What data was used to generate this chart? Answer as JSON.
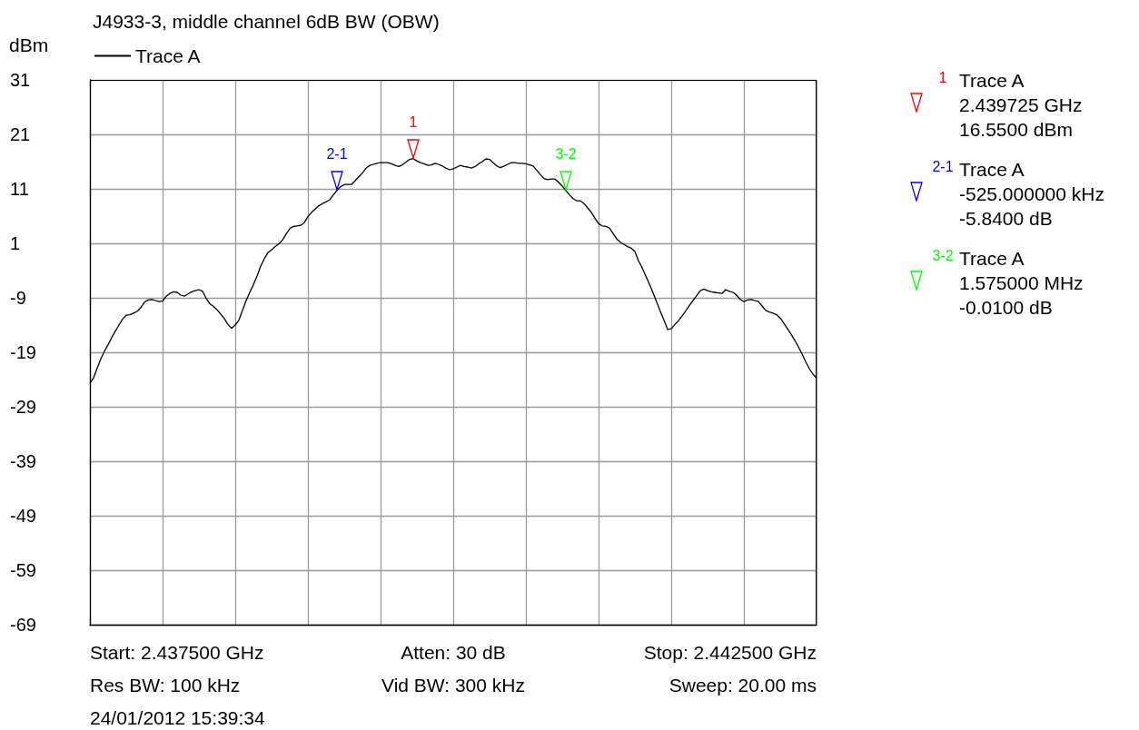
{
  "chart_data": {
    "type": "line",
    "title": "J4933-3, middle channel 6dB BW (OBW)",
    "ylabel": "dBm",
    "categories": [
      null,
      null,
      null,
      null,
      null,
      null,
      null,
      null,
      null,
      null,
      null,
      null,
      null,
      null,
      null,
      null,
      null,
      null,
      null,
      null,
      null,
      null,
      null,
      null,
      null,
      null,
      null,
      null,
      null,
      null,
      null,
      null,
      null,
      null,
      null,
      null,
      null,
      null,
      null,
      null,
      null,
      null,
      null,
      null,
      null,
      null,
      null,
      null,
      null,
      null,
      null,
      null,
      null,
      null,
      null,
      null,
      null,
      null,
      null,
      null,
      null,
      null,
      null,
      null,
      null,
      null,
      null,
      null,
      null,
      null,
      null,
      null,
      null,
      null,
      null,
      null,
      null,
      null,
      null,
      null,
      null,
      null,
      null,
      null,
      null,
      null,
      null,
      null,
      null,
      null,
      null,
      null,
      null,
      null,
      null,
      null,
      null,
      null,
      null,
      null,
      null,
      null,
      null,
      null,
      null,
      null,
      null,
      null,
      null,
      null,
      null,
      null,
      null,
      null,
      null,
      null,
      null,
      null,
      null,
      null,
      null,
      null,
      null,
      null,
      null,
      null,
      null,
      null,
      null,
      null,
      null,
      null,
      null,
      null,
      null,
      null,
      null,
      null,
      null,
      null,
      null,
      null,
      null,
      null,
      null,
      null,
      null,
      null,
      null,
      null,
      null,
      null,
      null,
      null,
      null,
      null,
      null,
      null,
      null,
      null,
      null,
      null,
      null,
      null,
      null,
      null,
      null,
      null,
      null,
      null,
      null,
      null,
      null,
      null,
      null,
      null,
      null,
      null,
      null,
      null,
      null,
      null,
      null,
      null,
      null,
      null,
      null,
      null,
      null,
      null,
      null,
      null,
      null,
      null,
      null,
      null,
      null,
      null,
      null,
      null,
      null
    ],
    "ylim": [
      -69,
      31
    ],
    "yticks": [
      -69,
      -59,
      -49,
      -39,
      -29,
      -19,
      -9,
      1,
      11,
      21,
      31
    ],
    "tick_labels": "y",
    "grid": true,
    "legend": "top left",
    "marker": "none",
    "line_style": "solid",
    "series": [
      {
        "name": "Trace A",
        "color": "#000000",
        "values": [
          -24.7,
          -23.7,
          -21.9,
          -20.2,
          -18.8,
          -17.6,
          -16.3,
          -15.1,
          -14.0,
          -12.9,
          -12.2,
          -12.1,
          -11.8,
          -11.5,
          -10.8,
          -9.8,
          -9.4,
          -9.3,
          -9.5,
          -9.7,
          -9.6,
          -8.7,
          -8.2,
          -7.9,
          -8.0,
          -8.5,
          -8.7,
          -8.3,
          -7.9,
          -7.7,
          -7.5,
          -7.8,
          -9.1,
          -10.1,
          -10.6,
          -11.2,
          -12.0,
          -12.8,
          -13.9,
          -14.6,
          -14.0,
          -13.1,
          -11.3,
          -9.5,
          -8.0,
          -6.6,
          -5.0,
          -3.2,
          -1.8,
          -0.7,
          -0.2,
          0.4,
          0.9,
          1.6,
          2.7,
          3.7,
          4.1,
          4.2,
          4.3,
          4.8,
          5.9,
          6.7,
          7.3,
          7.9,
          8.3,
          8.6,
          9.0,
          9.9,
          10.71,
          11.4,
          11.8,
          11.8,
          11.8,
          12.5,
          13.2,
          13.9,
          14.8,
          15.3,
          15.5,
          15.7,
          15.8,
          15.8,
          15.8,
          15.6,
          15.3,
          15.1,
          15.4,
          15.9,
          16.4,
          16.55,
          16.1,
          15.8,
          15.6,
          15.3,
          15.4,
          15.7,
          15.5,
          15.2,
          14.8,
          14.5,
          14.7,
          15.0,
          15.3,
          15.1,
          15.0,
          14.8,
          15.1,
          15.6,
          16.0,
          16.5,
          16.4,
          15.8,
          15.2,
          14.9,
          15.2,
          15.5,
          15.8,
          15.8,
          15.7,
          15.7,
          15.6,
          15.4,
          15.2,
          14.4,
          13.6,
          12.9,
          12.7,
          12.8,
          12.8,
          12.2,
          11.5,
          10.7,
          9.9,
          9.2,
          8.8,
          8.8,
          8.3,
          7.5,
          6.7,
          5.6,
          4.6,
          4.2,
          4.1,
          3.8,
          2.8,
          1.8,
          1.2,
          0.8,
          0.4,
          0.1,
          -0.5,
          -2.2,
          -3.5,
          -5.0,
          -6.5,
          -8.1,
          -9.8,
          -11.5,
          -13.1,
          -14.8,
          -14.7,
          -13.9,
          -13.2,
          -12.3,
          -11.4,
          -10.4,
          -9.5,
          -8.6,
          -7.7,
          -7.4,
          -7.7,
          -7.9,
          -8.0,
          -8.1,
          -8.2,
          -7.5,
          -7.8,
          -8.0,
          -8.5,
          -9.3,
          -9.7,
          -9.4,
          -9.3,
          -9.5,
          -9.7,
          -10.5,
          -11.3,
          -11.6,
          -11.8,
          -12.1,
          -12.7,
          -13.7,
          -14.7,
          -15.7,
          -16.8,
          -18.0,
          -19.3,
          -20.7,
          -22.0,
          -23.0,
          -23.7
        ]
      }
    ],
    "annotations": [
      {
        "text": "1",
        "y": 16.55
      },
      {
        "text": "2-1",
        "y": 10.71
      },
      {
        "text": "3-2",
        "y": 10.7
      },
      "1",
      "Trace A",
      "2.439725 GHz",
      "16.5500 dBm",
      "2-1",
      "Trace A",
      "-525.000000 kHz",
      "-5.8400 dB",
      "3-2",
      "Trace A",
      "1.575000 MHz",
      "-0.0100 dB",
      "Start: 2.437500 GHz",
      "Atten: 30 dB",
      "Stop: 2.442500 GHz",
      "Res BW: 100 kHz",
      "Vid BW: 300 kHz",
      "Sweep: 20.00 ms",
      "24/01/2012 15:39:34"
    ]
  }
}
